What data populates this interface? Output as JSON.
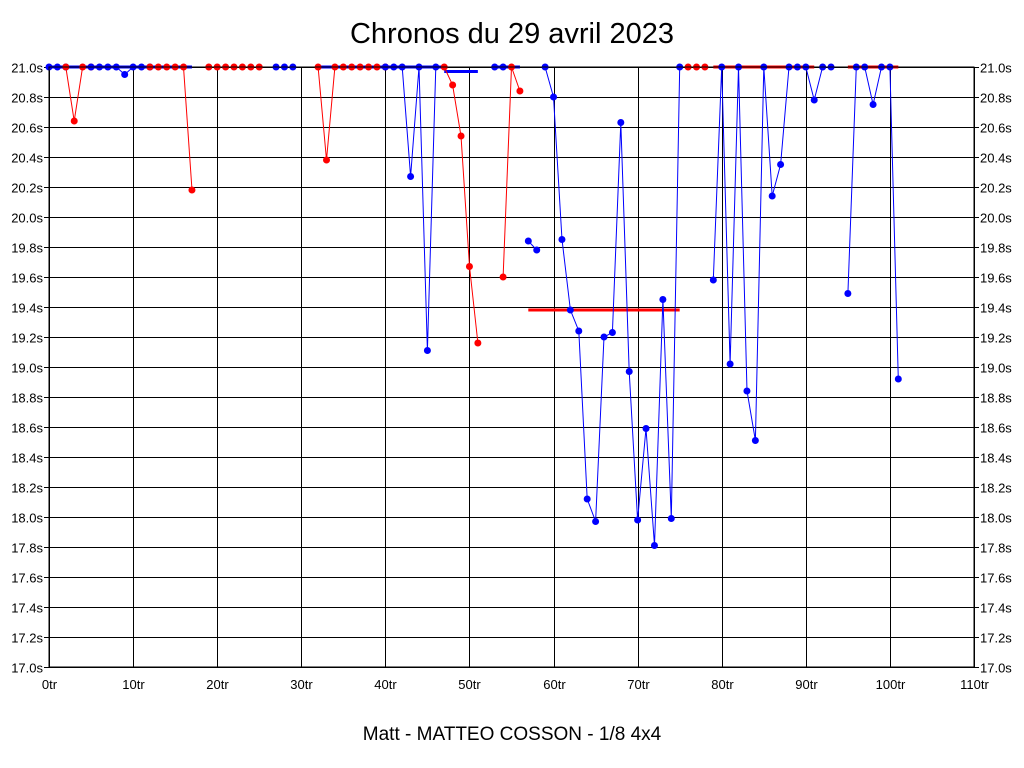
{
  "chart_data": {
    "type": "line",
    "title": "Chronos du 29 avril 2023",
    "footer": "Matt - MATTEO COSSON - 1/8 4x4",
    "xlim": [
      0,
      110
    ],
    "ylim": [
      17.0,
      21.0
    ],
    "x_ticks": [
      0,
      10,
      20,
      30,
      40,
      50,
      60,
      70,
      80,
      90,
      100,
      110
    ],
    "x_tick_labels": [
      "0tr",
      "10tr",
      "20tr",
      "30tr",
      "40tr",
      "50tr",
      "60tr",
      "70tr",
      "80tr",
      "90tr",
      "100tr",
      "110tr"
    ],
    "y_ticks": [
      17.0,
      17.2,
      17.4,
      17.6,
      17.8,
      18.0,
      18.2,
      18.4,
      18.6,
      18.8,
      19.0,
      19.2,
      19.4,
      19.6,
      19.8,
      20.0,
      20.2,
      20.4,
      20.6,
      20.8,
      21.0
    ],
    "y_tick_labels": [
      "17.0s",
      "17.2s",
      "17.4s",
      "17.6s",
      "17.8s",
      "18.0s",
      "18.2s",
      "18.4s",
      "18.6s",
      "18.8s",
      "19.0s",
      "19.2s",
      "19.4s",
      "19.6s",
      "19.8s",
      "20.0s",
      "20.2s",
      "20.4s",
      "20.6s",
      "20.8s",
      "21.0s"
    ],
    "grid": true,
    "colors": {
      "red": "#ff0000",
      "blue": "#0000ff",
      "grid": "#000000"
    },
    "series": [
      {
        "color": "#0000ff",
        "points": [
          [
            0,
            21.0
          ],
          [
            1,
            21.0
          ],
          [
            2,
            21.0
          ]
        ]
      },
      {
        "color": "#ff0000",
        "points": [
          [
            2,
            21.0
          ],
          [
            3,
            20.64
          ],
          [
            4,
            21.0
          ],
          [
            5,
            21.0
          ]
        ]
      },
      {
        "color": "#0000ff",
        "points": [
          [
            5,
            21.0
          ],
          [
            6,
            21.0
          ],
          [
            7,
            21.0
          ],
          [
            8,
            21.0
          ],
          [
            9,
            20.95
          ],
          [
            10,
            21.0
          ],
          [
            11,
            21.0
          ],
          [
            12,
            21.0
          ]
        ]
      },
      {
        "color": "#ff0000",
        "points": [
          [
            12,
            21.0
          ],
          [
            13,
            21.0
          ],
          [
            14,
            21.0
          ],
          [
            15,
            21.0
          ],
          [
            16,
            21.0
          ],
          [
            17,
            20.18
          ]
        ]
      },
      {
        "color": "#ff0000",
        "points": [
          [
            19,
            21.0
          ],
          [
            20,
            21.0
          ],
          [
            21,
            21.0
          ],
          [
            22,
            21.0
          ],
          [
            23,
            21.0
          ],
          [
            24,
            21.0
          ],
          [
            25,
            21.0
          ]
        ]
      },
      {
        "color": "#0000ff",
        "points": [
          [
            27,
            21.0
          ],
          [
            28,
            21.0
          ],
          [
            29,
            21.0
          ]
        ]
      },
      {
        "color": "#ff0000",
        "points": [
          [
            32,
            21.0
          ],
          [
            33,
            20.38
          ],
          [
            34,
            21.0
          ],
          [
            35,
            21.0
          ],
          [
            36,
            21.0
          ],
          [
            37,
            21.0
          ],
          [
            38,
            21.0
          ],
          [
            39,
            21.0
          ],
          [
            40,
            21.0
          ]
        ]
      },
      {
        "color": "#0000ff",
        "points": [
          [
            40,
            21.0
          ],
          [
            41,
            21.0
          ],
          [
            42,
            21.0
          ],
          [
            43,
            20.27
          ],
          [
            44,
            21.0
          ],
          [
            45,
            19.11
          ],
          [
            46,
            21.0
          ]
        ]
      },
      {
        "color": "#ff0000",
        "points": [
          [
            47,
            21.0
          ],
          [
            48,
            20.88
          ],
          [
            49,
            20.54
          ],
          [
            50,
            19.67
          ],
          [
            51,
            19.16
          ]
        ]
      },
      {
        "color": "#0000ff",
        "points": [
          [
            53,
            21.0
          ],
          [
            54,
            21.0
          ]
        ]
      },
      {
        "color": "#ff0000",
        "points": [
          [
            54,
            19.6
          ],
          [
            55,
            21.0
          ],
          [
            56,
            20.84
          ]
        ]
      },
      {
        "color": "#0000ff",
        "points": [
          [
            57,
            19.84
          ],
          [
            58,
            19.78
          ]
        ]
      },
      {
        "color": "#0000ff",
        "points": [
          [
            59,
            21.0
          ],
          [
            60,
            20.8
          ],
          [
            61,
            19.85
          ],
          [
            62,
            19.38
          ],
          [
            63,
            19.24
          ],
          [
            64,
            18.12
          ],
          [
            65,
            17.97
          ],
          [
            66,
            19.2
          ],
          [
            67,
            19.23
          ],
          [
            68,
            20.63
          ],
          [
            69,
            18.97
          ],
          [
            70,
            17.98
          ],
          [
            71,
            18.59
          ],
          [
            72,
            17.81
          ],
          [
            73,
            19.45
          ],
          [
            74,
            17.99
          ],
          [
            75,
            21.0
          ]
        ]
      },
      {
        "color": "#ff0000",
        "points": [
          [
            76,
            21.0
          ],
          [
            77,
            21.0
          ],
          [
            78,
            21.0
          ]
        ]
      },
      {
        "color": "#0000ff",
        "points": [
          [
            79,
            19.58
          ],
          [
            80,
            21.0
          ],
          [
            81,
            19.02
          ],
          [
            82,
            21.0
          ],
          [
            83,
            18.84
          ],
          [
            84,
            18.51
          ],
          [
            85,
            21.0
          ],
          [
            86,
            20.14
          ],
          [
            87,
            20.35
          ],
          [
            88,
            21.0
          ],
          [
            89,
            21.0
          ],
          [
            90,
            21.0
          ],
          [
            91,
            20.78
          ],
          [
            92,
            21.0
          ],
          [
            93,
            21.0
          ]
        ]
      },
      {
        "color": "#0000ff",
        "points": [
          [
            95,
            19.49
          ],
          [
            96,
            21.0
          ],
          [
            97,
            21.0
          ],
          [
            98,
            20.75
          ],
          [
            99,
            21.0
          ],
          [
            100,
            21.0
          ],
          [
            101,
            18.92
          ]
        ]
      }
    ],
    "reference_lines": [
      {
        "color": "#0000ff",
        "x": [
          0,
          17
        ],
        "y": 21.0
      },
      {
        "color": "#0000ff",
        "x": [
          32,
          47
        ],
        "y": 21.0
      },
      {
        "color": "#0000ff",
        "x": [
          47,
          51
        ],
        "y": 20.97
      },
      {
        "color": "#0000ff",
        "x": [
          53,
          56
        ],
        "y": 21.0
      },
      {
        "color": "#ff0000",
        "x": [
          57,
          75
        ],
        "y": 19.38
      },
      {
        "color": "#ff0000",
        "x": [
          79,
          91
        ],
        "y": 21.0
      },
      {
        "color": "#ff0000",
        "x": [
          95,
          101
        ],
        "y": 21.0
      }
    ]
  }
}
